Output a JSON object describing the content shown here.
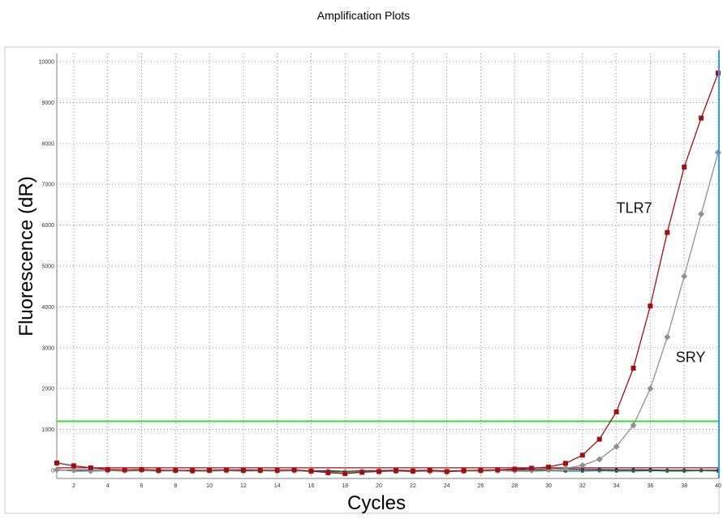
{
  "chart_data": {
    "type": "line",
    "title": "Amplification Plots",
    "xlabel": "Cycles",
    "ylabel": "Fluorescence (dR)",
    "xlim": [
      1,
      40
    ],
    "ylim": [
      -200,
      10200
    ],
    "x_ticks": [
      "2",
      "4",
      "6",
      "8",
      "10",
      "12",
      "14",
      "16",
      "18",
      "20",
      "22",
      "24",
      "26",
      "28",
      "30",
      "32",
      "34",
      "36",
      "38",
      "40"
    ],
    "y_ticks": [
      "0",
      "1000",
      "2000",
      "3000",
      "4000",
      "5000",
      "6000",
      "7000",
      "8000",
      "9000",
      "10000"
    ],
    "grid": true,
    "threshold": 1200,
    "threshold_color": "#33dd33",
    "cursor_x": 40,
    "cursor_color": "#3399ff",
    "annotations": [
      {
        "text": "TLR7",
        "series": 0
      },
      {
        "text": "SRY",
        "series": 1
      }
    ],
    "series": [
      {
        "color": "#a01010",
        "marker": "square",
        "x": [
          1,
          2,
          3,
          4,
          5,
          6,
          7,
          8,
          9,
          10,
          11,
          12,
          13,
          14,
          15,
          16,
          17,
          18,
          19,
          20,
          21,
          22,
          23,
          24,
          25,
          26,
          27,
          28,
          29,
          30,
          31,
          32,
          33,
          34,
          35,
          36,
          37,
          38,
          39,
          40
        ],
        "y": [
          180,
          110,
          60,
          20,
          10,
          20,
          0,
          0,
          -10,
          0,
          10,
          0,
          0,
          0,
          10,
          -20,
          -60,
          -80,
          -50,
          -30,
          -10,
          -20,
          0,
          -30,
          -10,
          0,
          10,
          30,
          50,
          80,
          170,
          370,
          760,
          1430,
          2500,
          4020,
          5820,
          7420,
          8620,
          9720
        ]
      },
      {
        "color": "#909090",
        "marker": "diamond",
        "x": [
          1,
          2,
          3,
          4,
          5,
          6,
          7,
          8,
          9,
          10,
          11,
          12,
          13,
          14,
          15,
          16,
          17,
          18,
          19,
          20,
          21,
          22,
          23,
          24,
          25,
          26,
          27,
          28,
          29,
          30,
          31,
          32,
          33,
          34,
          35,
          36,
          37,
          38,
          39,
          40
        ],
        "y": [
          10,
          0,
          -20,
          -10,
          -10,
          0,
          -20,
          -10,
          -20,
          -10,
          -10,
          -20,
          -10,
          -20,
          -10,
          -30,
          -50,
          -60,
          -40,
          -30,
          -20,
          -20,
          -30,
          -40,
          -20,
          -20,
          -10,
          -10,
          0,
          20,
          50,
          120,
          270,
          580,
          1100,
          2000,
          3260,
          4750,
          6270,
          7780
        ]
      },
      {
        "color": "#2a6a2a",
        "marker": "circle",
        "x": [
          1,
          2,
          3,
          4,
          5,
          6,
          7,
          8,
          9,
          10,
          11,
          12,
          13,
          14,
          15,
          16,
          17,
          18,
          19,
          20,
          21,
          22,
          23,
          24,
          25,
          26,
          27,
          28,
          29,
          30,
          31,
          32,
          33,
          34,
          35,
          36,
          37,
          38,
          39,
          40
        ],
        "y": [
          20,
          -20,
          -20,
          -10,
          -20,
          -10,
          -20,
          -10,
          -20,
          -20,
          -10,
          -20,
          -10,
          -20,
          -10,
          -30,
          -30,
          -30,
          -20,
          -20,
          -20,
          -30,
          -20,
          -30,
          -20,
          -20,
          -10,
          -20,
          -20,
          -10,
          -20,
          -20,
          -10,
          -20,
          -20,
          -10,
          -20,
          -20,
          -10,
          -20
        ]
      },
      {
        "color": "#202080",
        "marker": "circle",
        "x": [
          1,
          2,
          3,
          4,
          5,
          6,
          7,
          8,
          9,
          10,
          11,
          12,
          13,
          14,
          15,
          16,
          17,
          18,
          19,
          20,
          21,
          22,
          23,
          24,
          25,
          26,
          27,
          28,
          29,
          30,
          31,
          32,
          33,
          34,
          35,
          36,
          37,
          38,
          39,
          40
        ],
        "y": [
          0,
          10,
          0,
          -10,
          0,
          -10,
          0,
          -10,
          0,
          -10,
          0,
          10,
          0,
          -10,
          0,
          -20,
          -10,
          -30,
          -10,
          -10,
          0,
          -10,
          0,
          -20,
          -10,
          0,
          0,
          10,
          20,
          30,
          30,
          20,
          20,
          10,
          10,
          10,
          0,
          0,
          0,
          0
        ]
      },
      {
        "color": "#a01010",
        "marker": "none",
        "x": [
          1,
          40
        ],
        "y": [
          60,
          60
        ]
      }
    ]
  }
}
